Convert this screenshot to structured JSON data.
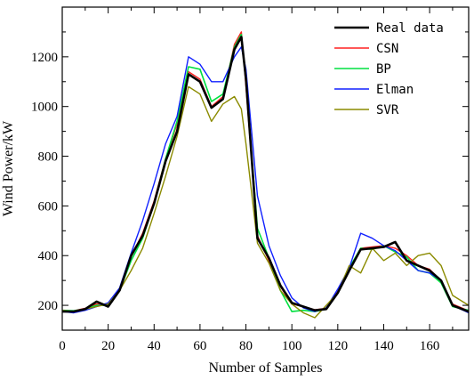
{
  "chart_data": {
    "type": "line",
    "xlabel": "Number of Samples",
    "ylabel": "Wind Power/kW",
    "xlim": [
      0,
      177
    ],
    "ylim": [
      100,
      1400
    ],
    "xticks": [
      0,
      20,
      40,
      60,
      80,
      100,
      120,
      140,
      160
    ],
    "yticks": [
      200,
      400,
      600,
      800,
      1000,
      1200
    ],
    "grid": false,
    "legend_position": "top-right",
    "x": [
      0,
      5,
      10,
      15,
      20,
      25,
      30,
      35,
      40,
      45,
      50,
      55,
      60,
      65,
      70,
      75,
      78,
      80,
      85,
      90,
      95,
      100,
      105,
      110,
      115,
      120,
      125,
      130,
      135,
      140,
      145,
      150,
      155,
      160,
      165,
      170,
      177
    ],
    "series": [
      {
        "name": "Real data",
        "color": "#000000",
        "width": 2.6,
        "values": [
          175,
          175,
          185,
          215,
          195,
          260,
          400,
          480,
          610,
          780,
          900,
          1130,
          1100,
          995,
          1030,
          1230,
          1280,
          1110,
          470,
          390,
          280,
          210,
          195,
          180,
          185,
          250,
          340,
          425,
          430,
          435,
          455,
          380,
          360,
          340,
          300,
          200,
          175
        ]
      },
      {
        "name": "CSN",
        "color": "#ff2020",
        "width": 1.4,
        "values": [
          178,
          178,
          188,
          205,
          205,
          265,
          395,
          490,
          620,
          790,
          930,
          1140,
          1110,
          1000,
          1040,
          1250,
          1300,
          1080,
          480,
          380,
          275,
          205,
          195,
          182,
          188,
          255,
          345,
          430,
          435,
          440,
          430,
          400,
          360,
          345,
          300,
          205,
          178
        ]
      },
      {
        "name": "BP",
        "color": "#00e040",
        "width": 1.6,
        "values": [
          180,
          178,
          185,
          200,
          200,
          260,
          380,
          470,
          610,
          790,
          940,
          1160,
          1150,
          1020,
          1050,
          1240,
          1290,
          1100,
          510,
          390,
          260,
          175,
          180,
          175,
          185,
          250,
          350,
          430,
          425,
          440,
          415,
          395,
          340,
          330,
          290,
          195,
          180
        ]
      },
      {
        "name": "Elman",
        "color": "#1020ff",
        "width": 1.4,
        "values": [
          175,
          170,
          180,
          195,
          210,
          270,
          410,
          540,
          690,
          850,
          960,
          1200,
          1170,
          1100,
          1100,
          1200,
          1240,
          1150,
          640,
          440,
          320,
          230,
          190,
          175,
          190,
          265,
          350,
          490,
          470,
          440,
          420,
          380,
          340,
          330,
          300,
          200,
          170
        ]
      },
      {
        "name": "SVR",
        "color": "#8b8b00",
        "width": 1.4,
        "values": [
          180,
          175,
          185,
          195,
          205,
          260,
          340,
          430,
          570,
          720,
          880,
          1080,
          1050,
          940,
          1010,
          1040,
          990,
          850,
          450,
          370,
          260,
          205,
          170,
          150,
          200,
          250,
          360,
          330,
          430,
          380,
          410,
          360,
          400,
          410,
          360,
          240,
          200
        ]
      }
    ]
  }
}
